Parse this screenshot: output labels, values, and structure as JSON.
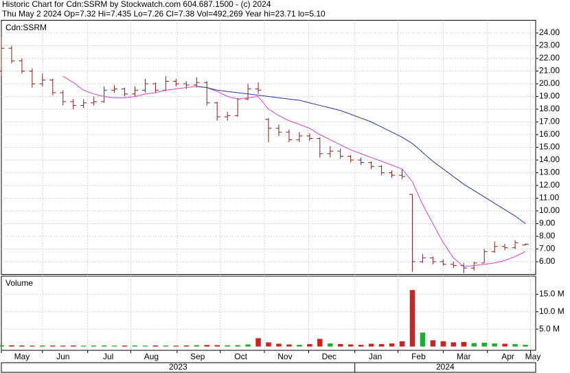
{
  "chart_data": [
    {
      "type": "ohlc",
      "title": "Historic Chart for Cdn:SSRM by Stockwatch.com 604.687.1500 - (c) 2024",
      "subtitle": "Thu May  2 2024  Op=7.32  Hi=7.435  Lo=7.26  Cl=7.38  Vol=492,269  Year hi=23.71  lo=5.10",
      "label": "Cdn:SSRM",
      "x": [
        0,
        1,
        2,
        3,
        4,
        5,
        6,
        7,
        8,
        9,
        10,
        11,
        12,
        13,
        14,
        15,
        16,
        17,
        18,
        19,
        20,
        21,
        22,
        23,
        24,
        25,
        26,
        27,
        28,
        29,
        30,
        31,
        32,
        33,
        34,
        35,
        36,
        37,
        38,
        39,
        40,
        41,
        42,
        43,
        44,
        45,
        46,
        47,
        48,
        49,
        50,
        51
      ],
      "xlim": [
        0,
        52
      ],
      "xticks": [
        {
          "value": 0,
          "label": "May"
        },
        {
          "value": 4.0,
          "label": "Jun"
        },
        {
          "value": 8.4,
          "label": "Jul"
        },
        {
          "value": 12.6,
          "label": "Aug"
        },
        {
          "value": 17.1,
          "label": "Sep"
        },
        {
          "value": 21.3,
          "label": "Oct"
        },
        {
          "value": 25.6,
          "label": "Nov"
        },
        {
          "value": 29.9,
          "label": "Dec"
        },
        {
          "value": 34.4,
          "label": "Jan"
        },
        {
          "value": 38.6,
          "label": "Feb"
        },
        {
          "value": 43.0,
          "label": "Mar"
        },
        {
          "value": 47.3,
          "label": "Apr"
        },
        {
          "value": 51.5,
          "label": "May"
        }
      ],
      "years": [
        "2023",
        "2024"
      ],
      "open": [
        21.0,
        22.8,
        21.8,
        21.0,
        20.0,
        20.3,
        19.3,
        18.6,
        18.3,
        18.5,
        18.6,
        19.5,
        19.6,
        19.2,
        19.5,
        20.0,
        19.5,
        20.2,
        20.0,
        19.9,
        20.1,
        18.5,
        17.4,
        17.5,
        18.8,
        19.6,
        17.2,
        16.5,
        16.2,
        15.6,
        15.9,
        15.7,
        14.5,
        14.7,
        14.3,
        14.0,
        13.8,
        13.5,
        13.0,
        12.8,
        11.3,
        6.0,
        6.3,
        6.0,
        5.8,
        5.7,
        5.5,
        5.9,
        6.8,
        7.2,
        7.1,
        7.32
      ],
      "high": [
        23.71,
        23.0,
        22.0,
        21.2,
        20.8,
        20.4,
        19.5,
        18.8,
        18.8,
        19.0,
        19.8,
        19.9,
        19.7,
        19.8,
        20.4,
        20.1,
        20.6,
        20.4,
        20.2,
        20.5,
        20.2,
        18.6,
        17.8,
        18.9,
        20.0,
        20.1,
        17.3,
        16.8,
        16.4,
        16.2,
        16.1,
        15.8,
        15.1,
        14.9,
        14.4,
        14.2,
        13.9,
        13.6,
        13.2,
        13.3,
        11.3,
        6.6,
        6.4,
        6.2,
        6.0,
        5.9,
        6.0,
        7.0,
        7.6,
        7.4,
        7.7,
        7.435
      ],
      "low": [
        20.6,
        21.6,
        20.8,
        19.7,
        19.8,
        19.1,
        18.3,
        18.0,
        18.1,
        18.3,
        18.5,
        19.3,
        19.0,
        19.0,
        19.3,
        19.3,
        19.4,
        19.8,
        19.6,
        19.7,
        18.3,
        17.1,
        17.1,
        17.4,
        18.7,
        19.2,
        15.4,
        15.9,
        15.4,
        15.4,
        15.5,
        14.2,
        14.2,
        14.1,
        13.8,
        13.6,
        13.3,
        12.8,
        12.6,
        12.5,
        5.2,
        5.9,
        5.8,
        5.7,
        5.5,
        5.1,
        5.3,
        5.9,
        6.7,
        6.9,
        7.0,
        7.26
      ],
      "close": [
        22.8,
        21.8,
        21.0,
        20.0,
        20.3,
        19.3,
        18.6,
        18.3,
        18.5,
        18.6,
        19.5,
        19.6,
        19.2,
        19.5,
        20.0,
        19.5,
        20.2,
        20.0,
        19.9,
        20.1,
        18.5,
        17.4,
        17.5,
        18.8,
        19.6,
        19.5,
        16.5,
        16.2,
        15.6,
        15.9,
        15.7,
        14.5,
        14.7,
        14.3,
        14.0,
        13.8,
        13.5,
        13.0,
        12.8,
        12.7,
        6.0,
        6.3,
        6.0,
        5.8,
        5.7,
        5.5,
        5.9,
        6.8,
        7.2,
        7.1,
        7.5,
        7.38
      ],
      "color": "#8b1a1a",
      "averages": [
        {
          "color": "#e040c0",
          "values": [
            null,
            null,
            null,
            null,
            null,
            null,
            20.6,
            20.1,
            19.5,
            19.2,
            19.0,
            18.9,
            18.9,
            19.0,
            19.2,
            19.3,
            19.5,
            19.6,
            19.7,
            19.8,
            19.7,
            19.4,
            19.0,
            18.8,
            18.9,
            19.0,
            18.0,
            17.5,
            17.1,
            16.8,
            16.5,
            16.0,
            15.6,
            15.2,
            14.8,
            14.5,
            14.2,
            13.9,
            13.6,
            13.3,
            12.3,
            10.5,
            9.0,
            7.5,
            6.3,
            5.6,
            5.7,
            5.8,
            5.9,
            6.1,
            6.4,
            6.8
          ]
        },
        {
          "color": "#2233aa",
          "values": [
            null,
            null,
            null,
            null,
            null,
            null,
            null,
            null,
            null,
            null,
            null,
            null,
            null,
            null,
            null,
            null,
            null,
            null,
            null,
            19.8,
            19.7,
            19.5,
            19.4,
            19.3,
            19.2,
            19.1,
            19.0,
            18.9,
            18.8,
            18.7,
            18.5,
            18.3,
            18.1,
            17.9,
            17.6,
            17.3,
            17.0,
            16.6,
            16.2,
            15.8,
            15.3,
            14.6,
            13.9,
            13.3,
            12.7,
            12.1,
            11.6,
            11.1,
            10.6,
            10.1,
            9.6,
            9.0
          ]
        }
      ],
      "ylim": [
        5,
        25
      ],
      "yticks": [
        {
          "value": 6,
          "label": "6.00"
        },
        {
          "value": 7,
          "label": "7.00"
        },
        {
          "value": 8,
          "label": "8.00"
        },
        {
          "value": 9,
          "label": "9.00"
        },
        {
          "value": 10,
          "label": "10.00"
        },
        {
          "value": 11,
          "label": "11.00"
        },
        {
          "value": 12,
          "label": "12.00"
        },
        {
          "value": 13,
          "label": "13.00"
        },
        {
          "value": 14,
          "label": "14.00"
        },
        {
          "value": 15,
          "label": "15.00"
        },
        {
          "value": 16,
          "label": "16.00"
        },
        {
          "value": 17,
          "label": "17.00"
        },
        {
          "value": 18,
          "label": "18.00"
        },
        {
          "value": 19,
          "label": "19.00"
        },
        {
          "value": 20,
          "label": "20.00"
        },
        {
          "value": 21,
          "label": "21.00"
        },
        {
          "value": 22,
          "label": "22.00"
        },
        {
          "value": 23,
          "label": "23.00"
        },
        {
          "value": 24,
          "label": "24.00"
        }
      ],
      "grid": true
    },
    {
      "type": "bar",
      "label": "Volume",
      "values": [
        400000,
        350000,
        300000,
        250000,
        300000,
        280000,
        250000,
        300000,
        250000,
        280000,
        300000,
        250000,
        280000,
        300000,
        250000,
        300000,
        280000,
        250000,
        300000,
        400000,
        450000,
        400000,
        350000,
        400000,
        600000,
        2400000,
        1200000,
        800000,
        600000,
        500000,
        700000,
        2200000,
        900000,
        700000,
        600000,
        500000,
        800000,
        700000,
        900000,
        1500000,
        16200000,
        4000000,
        1800000,
        1500000,
        1200000,
        1300000,
        1000000,
        1100000,
        900000,
        800000,
        700000,
        492269
      ],
      "up_color": "#22aa33",
      "down_color": "#cc2222",
      "ylim": [
        0,
        20000000
      ],
      "yticks": [
        {
          "value": 5000000,
          "label": "5.0 M"
        },
        {
          "value": 10000000,
          "label": "10.0 M"
        },
        {
          "value": 15000000,
          "label": "15.0 M"
        }
      ],
      "grid": true
    }
  ]
}
